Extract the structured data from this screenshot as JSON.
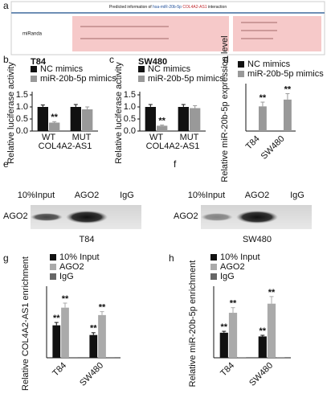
{
  "panel_a": {
    "label": "a",
    "title_prefix": "Predicted information of",
    "title_mirna": "hsa-miR-20b-5p",
    "title_lnc": "COL4A2-AS1",
    "title_suffix": "interaction",
    "row_label": "miRanda"
  },
  "chart_data": [
    {
      "type": "bar",
      "label": "b",
      "title": "T84",
      "ylabel": "Relative luciferase activity",
      "categories": [
        "WT",
        "MUT"
      ],
      "group_label": "COL4A2-AS1",
      "series": [
        {
          "name": "NC mimics",
          "color": "#111111",
          "values": [
            1.0,
            1.0
          ],
          "errors": [
            0.08,
            0.1
          ],
          "significance": [
            null,
            null
          ]
        },
        {
          "name": "miR-20b-5p mimics",
          "color": "#999999",
          "values": [
            0.35,
            0.9
          ],
          "errors": [
            0.04,
            0.1
          ],
          "significance": [
            "**",
            null
          ]
        }
      ],
      "ylim": [
        0,
        1.5
      ],
      "yticks": [
        {
          "value": 0,
          "label": "0.0"
        },
        0.5,
        {
          "value": 1,
          "label": "1.0"
        },
        1.5
      ]
    },
    {
      "type": "bar",
      "label": "c",
      "title": "SW480",
      "ylabel": "Relative luciferase activity",
      "categories": [
        "WT",
        "MUT"
      ],
      "group_label": "COL4A2-AS1",
      "series": [
        {
          "name": "NC mimics",
          "color": "#111111",
          "values": [
            1.0,
            1.0
          ],
          "errors": [
            0.1,
            0.1
          ],
          "significance": [
            null,
            null
          ]
        },
        {
          "name": "miR-20b-5p mimics",
          "color": "#999999",
          "values": [
            0.22,
            0.95
          ],
          "errors": [
            0.03,
            0.1
          ],
          "significance": [
            "**",
            null
          ]
        }
      ],
      "ylim": [
        0,
        1.5
      ],
      "yticks": [
        {
          "value": 0,
          "label": "0.0"
        },
        0.5,
        {
          "value": 1,
          "label": "1.0"
        },
        1.5
      ]
    },
    {
      "type": "bar",
      "label": "d",
      "ylabel": "Relative miR-20b-5p expression level",
      "categories": [
        "T84",
        "SW480"
      ],
      "series": [
        {
          "name": "NC mimics",
          "color": "#111111",
          "values": [
            1,
            1
          ],
          "errors": [
            0,
            0
          ],
          "significance": [
            null,
            null
          ]
        },
        {
          "name": "miR-20b-5p mimics",
          "color": "#999999",
          "values": [
            145,
            185
          ],
          "errors": [
            25,
            35
          ],
          "significance": [
            "**",
            "**"
          ]
        }
      ],
      "ylim": [
        0,
        260
      ]
    },
    {
      "type": "bar",
      "label": "g",
      "ylabel": "Relative COL4A2-AS1 enrichment",
      "categories": [
        "T84",
        "SW480"
      ],
      "series": [
        {
          "name": "10% Input",
          "color": "#111111",
          "values": [
            57,
            40
          ],
          "errors": [
            5,
            4
          ],
          "significance": [
            "**",
            "**"
          ]
        },
        {
          "name": "AGO2",
          "color": "#aaaaaa",
          "values": [
            88,
            75
          ],
          "errors": [
            8,
            6
          ],
          "significance": [
            "**",
            "**"
          ]
        },
        {
          "name": "IgG",
          "color": "#666666",
          "values": [
            1,
            1
          ],
          "errors": [
            0,
            0
          ],
          "significance": [
            null,
            null
          ]
        }
      ],
      "ylim": [
        0,
        120
      ]
    },
    {
      "type": "bar",
      "label": "h",
      "ylabel": "Relative miR-20b-5p enrichment",
      "categories": [
        "T84",
        "SW480"
      ],
      "series": [
        {
          "name": "10% Input",
          "color": "#111111",
          "values": [
            88,
            75
          ],
          "errors": [
            5,
            4
          ],
          "significance": [
            "**",
            "**"
          ]
        },
        {
          "name": "AGO2",
          "color": "#aaaaaa",
          "values": [
            158,
            190
          ],
          "errors": [
            18,
            25
          ],
          "significance": [
            "**",
            "**"
          ]
        },
        {
          "name": "IgG",
          "color": "#666666",
          "values": [
            1,
            1
          ],
          "errors": [
            0,
            0
          ],
          "significance": [
            null,
            null
          ]
        }
      ],
      "ylim": [
        0,
        240
      ]
    }
  ],
  "blots": [
    {
      "label": "e",
      "lanes": [
        "10%Input",
        "AGO2",
        "IgG"
      ],
      "row_label": "AGO2",
      "cell_line": "T84"
    },
    {
      "label": "f",
      "lanes": [
        "10%Input",
        "AGO2",
        "IgG"
      ],
      "row_label": "AGO2",
      "cell_line": "SW480"
    }
  ]
}
